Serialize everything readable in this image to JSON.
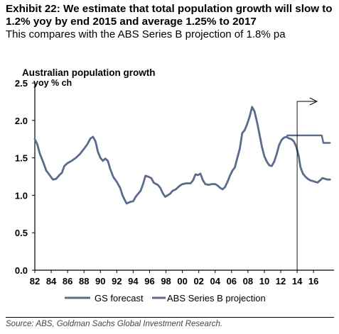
{
  "header": {
    "title": "Exhibit 22: We estimate that total population growth will slow to 1.2% yoy by end 2015 and average 1.25% to 2017",
    "subtitle": "This compares with the ABS Series B projection of 1.8% pa"
  },
  "source": "Source: ABS, Goldman Sachs Global Investment Research.",
  "chart_data": {
    "type": "line",
    "title": "Australian population growth",
    "ylabel": "yoy % ch",
    "ylim": [
      0,
      2.5
    ],
    "xlim": [
      1982,
      2018.5
    ],
    "y_ticks": [
      "0.0",
      "0.5",
      "1.0",
      "1.5",
      "2.0",
      "2.5"
    ],
    "x_ticks": [
      {
        "x": 1982,
        "label": "82"
      },
      {
        "x": 1984,
        "label": "84"
      },
      {
        "x": 1986,
        "label": "86"
      },
      {
        "x": 1988,
        "label": "88"
      },
      {
        "x": 1990,
        "label": "90"
      },
      {
        "x": 1992,
        "label": "92"
      },
      {
        "x": 1994,
        "label": "94"
      },
      {
        "x": 1996,
        "label": "96"
      },
      {
        "x": 1998,
        "label": "98"
      },
      {
        "x": 2000,
        "label": "00"
      },
      {
        "x": 2002,
        "label": "02"
      },
      {
        "x": 2004,
        "label": "04"
      },
      {
        "x": 2006,
        "label": "06"
      },
      {
        "x": 2008,
        "label": "08"
      },
      {
        "x": 2010,
        "label": "10"
      },
      {
        "x": 2012,
        "label": "12"
      },
      {
        "x": 2014,
        "label": "14"
      },
      {
        "x": 2016,
        "label": "16"
      }
    ],
    "grid": false,
    "legend_position": "bottom",
    "forecast_start": 2014,
    "color": "#5b6b8c",
    "series": [
      {
        "name": "GS forecast",
        "style": "thin",
        "points": [
          [
            1982.0,
            1.75
          ],
          [
            1982.3,
            1.68
          ],
          [
            1982.6,
            1.56
          ],
          [
            1983.0,
            1.45
          ],
          [
            1983.4,
            1.33
          ],
          [
            1983.8,
            1.27
          ],
          [
            1984.2,
            1.21
          ],
          [
            1984.6,
            1.22
          ],
          [
            1985.0,
            1.27
          ],
          [
            1985.3,
            1.3
          ],
          [
            1985.6,
            1.39
          ],
          [
            1986.0,
            1.43
          ],
          [
            1986.5,
            1.46
          ],
          [
            1987.0,
            1.5
          ],
          [
            1987.5,
            1.55
          ],
          [
            1988.0,
            1.62
          ],
          [
            1988.4,
            1.68
          ],
          [
            1988.8,
            1.76
          ],
          [
            1989.1,
            1.78
          ],
          [
            1989.4,
            1.72
          ],
          [
            1989.7,
            1.58
          ],
          [
            1990.0,
            1.5
          ],
          [
            1990.3,
            1.46
          ],
          [
            1990.6,
            1.49
          ],
          [
            1990.9,
            1.46
          ],
          [
            1991.2,
            1.35
          ],
          [
            1991.6,
            1.24
          ],
          [
            1992.0,
            1.18
          ],
          [
            1992.4,
            1.1
          ],
          [
            1992.7,
            1.0
          ],
          [
            1993.0,
            0.93
          ],
          [
            1993.2,
            0.89
          ],
          [
            1993.6,
            0.91
          ],
          [
            1994.0,
            0.92
          ],
          [
            1994.3,
            0.98
          ],
          [
            1994.6,
            1.02
          ],
          [
            1994.9,
            1.06
          ],
          [
            1995.2,
            1.15
          ],
          [
            1995.5,
            1.26
          ],
          [
            1995.8,
            1.25
          ],
          [
            1996.2,
            1.23
          ],
          [
            1996.5,
            1.17
          ],
          [
            1996.8,
            1.15
          ],
          [
            1997.0,
            1.14
          ],
          [
            1997.3,
            1.1
          ],
          [
            1997.6,
            1.03
          ],
          [
            1997.9,
            0.98
          ],
          [
            1998.2,
            1.0
          ],
          [
            1998.5,
            1.02
          ],
          [
            1998.8,
            1.06
          ],
          [
            1999.2,
            1.08
          ],
          [
            1999.6,
            1.12
          ],
          [
            2000.0,
            1.15
          ],
          [
            2000.5,
            1.16
          ],
          [
            2001.0,
            1.16
          ],
          [
            2001.3,
            1.2
          ],
          [
            2001.6,
            1.28
          ],
          [
            2001.9,
            1.27
          ],
          [
            2002.2,
            1.29
          ],
          [
            2002.5,
            1.2
          ],
          [
            2002.8,
            1.15
          ],
          [
            2003.2,
            1.14
          ],
          [
            2003.6,
            1.15
          ],
          [
            2004.0,
            1.15
          ],
          [
            2004.3,
            1.13
          ],
          [
            2004.6,
            1.1
          ],
          [
            2004.9,
            1.08
          ],
          [
            2005.2,
            1.11
          ],
          [
            2005.5,
            1.18
          ],
          [
            2005.8,
            1.26
          ],
          [
            2006.1,
            1.33
          ],
          [
            2006.4,
            1.37
          ],
          [
            2006.7,
            1.5
          ],
          [
            2007.0,
            1.62
          ],
          [
            2007.3,
            1.83
          ],
          [
            2007.6,
            1.87
          ],
          [
            2007.9,
            1.95
          ],
          [
            2008.2,
            2.05
          ],
          [
            2008.5,
            2.18
          ],
          [
            2008.8,
            2.12
          ],
          [
            2009.1,
            1.98
          ],
          [
            2009.4,
            1.82
          ],
          [
            2009.7,
            1.65
          ],
          [
            2010.0,
            1.52
          ],
          [
            2010.3,
            1.45
          ],
          [
            2010.6,
            1.4
          ],
          [
            2010.9,
            1.39
          ],
          [
            2011.2,
            1.45
          ],
          [
            2011.5,
            1.55
          ],
          [
            2011.8,
            1.67
          ],
          [
            2012.1,
            1.74
          ],
          [
            2012.4,
            1.77
          ],
          [
            2012.7,
            1.78
          ],
          [
            2013.0,
            1.76
          ],
          [
            2013.3,
            1.75
          ],
          [
            2013.6,
            1.72
          ],
          [
            2013.9,
            1.65
          ],
          [
            2014.2,
            1.52
          ],
          [
            2014.4,
            1.38
          ],
          [
            2014.7,
            1.29
          ],
          [
            2015.0,
            1.25
          ],
          [
            2015.3,
            1.22
          ],
          [
            2015.6,
            1.2
          ],
          [
            2015.9,
            1.19
          ],
          [
            2016.2,
            1.18
          ],
          [
            2016.5,
            1.17
          ],
          [
            2016.8,
            1.2
          ],
          [
            2017.1,
            1.23
          ],
          [
            2017.4,
            1.22
          ],
          [
            2017.7,
            1.21
          ],
          [
            2018.0,
            1.21
          ]
        ]
      },
      {
        "name": "ABS Series B projection",
        "style": "thick",
        "points": [
          [
            2012.8,
            1.8
          ],
          [
            2013.5,
            1.8
          ],
          [
            2014.2,
            1.8
          ],
          [
            2015.0,
            1.8
          ],
          [
            2015.8,
            1.8
          ],
          [
            2016.6,
            1.8
          ],
          [
            2017.0,
            1.8
          ],
          [
            2017.2,
            1.7
          ],
          [
            2018.0,
            1.7
          ]
        ]
      }
    ]
  }
}
